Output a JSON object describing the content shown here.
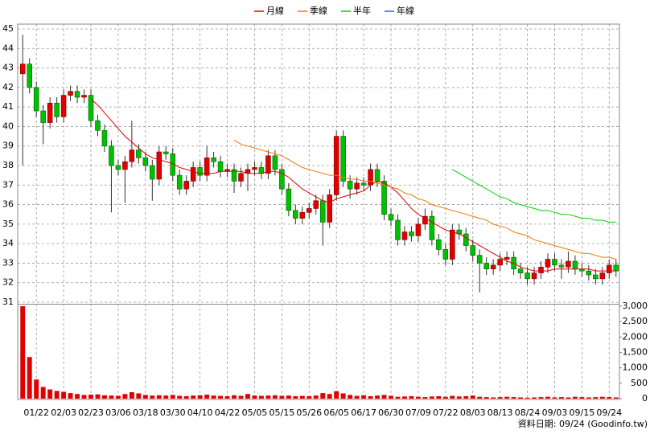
{
  "chart_data": [
    {
      "type": "candlestick",
      "legend": "top",
      "grid": true,
      "up_color": "#e00000",
      "down_color": "#00c000",
      "categories": [
        null,
        null,
        "01/22",
        null,
        null,
        null,
        "02/03",
        null,
        null,
        null,
        "02/23",
        null,
        null,
        null,
        "03/06",
        null,
        null,
        null,
        "03/18",
        null,
        null,
        null,
        "03/30",
        null,
        null,
        null,
        "04/10",
        null,
        null,
        null,
        "04/22",
        null,
        null,
        null,
        "05/05",
        null,
        null,
        null,
        "05/15",
        null,
        null,
        null,
        "05/26",
        null,
        null,
        null,
        "06/05",
        null,
        null,
        null,
        "06/17",
        null,
        null,
        null,
        "06/30",
        null,
        null,
        null,
        "07/09",
        null,
        null,
        null,
        "07/22",
        null,
        null,
        null,
        "08/03",
        null,
        null,
        null,
        "08/13",
        null,
        null,
        null,
        "08/24",
        null,
        null,
        null,
        "09/03",
        null,
        null,
        null,
        "09/15",
        null,
        null,
        null,
        "09/24",
        null
      ],
      "open": [
        42.7,
        43.2,
        42,
        40.8,
        40.2,
        41.2,
        40.5,
        41.6,
        41.8,
        41.5,
        41.6,
        40.3,
        39.8,
        39,
        38,
        37.8,
        38.2,
        38.8,
        38.4,
        38,
        37.3,
        38.7,
        38.6,
        37.5,
        36.8,
        37.2,
        37.9,
        37.5,
        38.4,
        38.2,
        37.7,
        37.8,
        37.2,
        37.6,
        37.8,
        37.9,
        37.6,
        38.5,
        37.8,
        36.8,
        35.7,
        35.3,
        35.6,
        35.8,
        36.2,
        35.1,
        36.5,
        39.5,
        37.2,
        36.8,
        37.1,
        37,
        37.8,
        37.2,
        35.5,
        35.2,
        34.2,
        34.6,
        34.4,
        35,
        35.4,
        34.2,
        33.7,
        33.2,
        34.7,
        34.5,
        33.9,
        33.4,
        33,
        32.7,
        32.9,
        33.2,
        33.3,
        32.7,
        32.5,
        32.2,
        32.5,
        32.8,
        33.2,
        32.9,
        32.8,
        33.1,
        32.7,
        32.6,
        32.4,
        32.2,
        32.5,
        32.9
      ],
      "high": [
        44.7,
        43.5,
        42.3,
        41.1,
        41.5,
        41.5,
        41.9,
        42.1,
        42.1,
        41.9,
        41.9,
        40.6,
        40.1,
        39.3,
        38.3,
        38.5,
        40.3,
        39.1,
        38.7,
        38.3,
        39,
        39,
        38.9,
        37.8,
        37.5,
        38.2,
        38.2,
        39,
        38.7,
        38.5,
        38.1,
        38.1,
        37.9,
        38.1,
        38.2,
        38.2,
        38.8,
        38.8,
        38.1,
        37.1,
        36,
        35.9,
        36.1,
        36.5,
        36.5,
        36.8,
        39.8,
        39.8,
        37.5,
        37.4,
        37.4,
        38.1,
        38.1,
        37.5,
        35.8,
        35.5,
        34.9,
        34.9,
        35.3,
        35.8,
        35.7,
        34.5,
        34,
        35,
        35,
        34.8,
        34.2,
        33.7,
        33.3,
        33.2,
        33.5,
        33.6,
        33.6,
        33,
        32.8,
        32.8,
        33.1,
        33.5,
        33.5,
        33.2,
        33.6,
        33.4,
        33,
        32.9,
        32.7,
        32.8,
        33.2,
        33.2
      ],
      "low": [
        38,
        41.7,
        40.5,
        39.1,
        39.9,
        40.2,
        40.2,
        41.3,
        41.2,
        41.2,
        40,
        39.5,
        38.7,
        35.6,
        37.5,
        36.1,
        37.9,
        38.1,
        37.7,
        36.2,
        37,
        38.3,
        37.2,
        36.5,
        36.5,
        36.9,
        37.2,
        37.2,
        37.9,
        37.4,
        37.4,
        36.6,
        36.9,
        36.7,
        37.5,
        37.3,
        37.3,
        37.5,
        36.5,
        35.4,
        35,
        35,
        35.3,
        35.5,
        33.9,
        34.8,
        36.2,
        36.9,
        36.3,
        36.5,
        36.7,
        36.7,
        36.9,
        35.2,
        34.9,
        33.9,
        33.9,
        34.1,
        34.1,
        34.7,
        33.9,
        33.4,
        32.9,
        32.9,
        34.2,
        33.6,
        33.1,
        31.5,
        32.4,
        32.4,
        32.6,
        32.9,
        32.4,
        32.2,
        31.9,
        31.9,
        32.2,
        32.5,
        32.6,
        32.2,
        32.5,
        32.4,
        32.3,
        32.1,
        31.9,
        31.9,
        32.2,
        32.3
      ],
      "close": [
        43.2,
        42,
        40.8,
        40.2,
        41.2,
        40.5,
        41.6,
        41.8,
        41.5,
        41.6,
        40.3,
        39.8,
        39,
        38,
        37.8,
        38.2,
        38.8,
        38.4,
        38,
        37.3,
        38.7,
        38.6,
        37.5,
        36.8,
        37.2,
        37.9,
        37.5,
        38.4,
        38.2,
        37.7,
        37.8,
        37.2,
        37.6,
        37.8,
        37.9,
        37.6,
        38.5,
        37.8,
        36.8,
        35.7,
        35.3,
        35.6,
        35.8,
        36.2,
        35.1,
        36.5,
        39.5,
        37.2,
        36.8,
        37.1,
        37,
        37.8,
        37.2,
        35.5,
        35.2,
        34.2,
        34.6,
        34.4,
        35,
        35.4,
        34.2,
        33.7,
        33.2,
        34.7,
        34.5,
        33.9,
        33.4,
        33,
        32.7,
        32.9,
        33.2,
        33.3,
        32.7,
        32.5,
        32.2,
        32.5,
        32.8,
        33.2,
        32.9,
        32.8,
        33.1,
        32.7,
        32.6,
        32.4,
        32.2,
        32.5,
        32.9,
        32.6
      ],
      "series": [
        {
          "name": "月線",
          "color": "#e00000",
          "values": [
            null,
            null,
            null,
            null,
            null,
            null,
            null,
            null,
            null,
            null,
            41.4,
            41.1,
            40.7,
            40.3,
            39.9,
            39.5,
            39.2,
            38.9,
            38.6,
            38.4,
            38.3,
            38.2,
            38.1,
            37.9,
            37.8,
            37.7,
            37.6,
            37.6,
            37.6,
            37.7,
            37.7,
            37.7,
            37.7,
            37.6,
            37.6,
            37.6,
            37.7,
            37.7,
            37.6,
            37.4,
            37.1,
            36.8,
            36.6,
            36.4,
            36.2,
            36.1,
            36.3,
            36.4,
            36.5,
            36.6,
            36.7,
            37.0,
            37.2,
            37.1,
            36.9,
            36.6,
            36.2,
            35.8,
            35.5,
            35.3,
            35.1,
            34.9,
            34.7,
            34.6,
            34.5,
            34.3,
            34.1,
            33.9,
            33.7,
            33.5,
            33.3,
            33.1,
            33.0,
            32.8,
            32.7,
            32.6,
            32.6,
            32.6,
            32.7,
            32.7,
            32.7,
            32.7,
            32.7,
            32.7,
            32.6,
            32.6,
            32.6,
            32.6
          ]
        },
        {
          "name": "季線",
          "color": "#f07800",
          "values": [
            null,
            null,
            null,
            null,
            null,
            null,
            null,
            null,
            null,
            null,
            null,
            null,
            null,
            null,
            null,
            null,
            null,
            null,
            null,
            null,
            null,
            null,
            null,
            null,
            null,
            null,
            null,
            null,
            null,
            null,
            null,
            39.3,
            39.1,
            39.0,
            38.9,
            38.8,
            38.7,
            38.6,
            38.5,
            38.3,
            38.1,
            37.9,
            37.8,
            37.7,
            37.6,
            37.5,
            37.5,
            37.4,
            37.3,
            37.3,
            37.2,
            37.2,
            37.1,
            37.0,
            36.9,
            36.8,
            36.6,
            36.5,
            36.3,
            36.2,
            36.0,
            35.9,
            35.8,
            35.7,
            35.6,
            35.5,
            35.4,
            35.3,
            35.2,
            35.0,
            34.9,
            34.8,
            34.6,
            34.5,
            34.4,
            34.2,
            34.1,
            34.0,
            33.9,
            33.8,
            33.7,
            33.6,
            33.5,
            33.5,
            33.4,
            33.3,
            33.3,
            33.2
          ]
        },
        {
          "name": "半年",
          "color": "#00d000",
          "values": [
            null,
            null,
            null,
            null,
            null,
            null,
            null,
            null,
            null,
            null,
            null,
            null,
            null,
            null,
            null,
            null,
            null,
            null,
            null,
            null,
            null,
            null,
            null,
            null,
            null,
            null,
            null,
            null,
            null,
            null,
            null,
            null,
            null,
            null,
            null,
            null,
            null,
            null,
            null,
            null,
            null,
            null,
            null,
            null,
            null,
            null,
            null,
            null,
            null,
            null,
            null,
            null,
            null,
            null,
            null,
            null,
            null,
            null,
            null,
            null,
            null,
            null,
            null,
            37.8,
            37.6,
            37.4,
            37.2,
            37.0,
            36.8,
            36.6,
            36.4,
            36.3,
            36.1,
            36.0,
            35.9,
            35.8,
            35.7,
            35.7,
            35.6,
            35.5,
            35.5,
            35.4,
            35.3,
            35.3,
            35.2,
            35.2,
            35.1,
            35.1
          ]
        },
        {
          "name": "年線",
          "color": "#1e6ee6",
          "values": [
            null,
            null,
            null,
            null,
            null,
            null,
            null,
            null,
            null,
            null,
            null,
            null,
            null,
            null,
            null,
            null,
            null,
            null,
            null,
            null,
            null,
            null,
            null,
            null,
            null,
            null,
            null,
            null,
            null,
            null,
            null,
            null,
            null,
            null,
            null,
            null,
            null,
            null,
            null,
            null,
            null,
            null,
            null,
            null,
            null,
            null,
            null,
            null,
            null,
            null,
            null,
            null,
            null,
            null,
            null,
            null,
            null,
            null,
            null,
            null,
            null,
            null,
            null,
            null,
            null,
            null,
            null,
            null,
            null,
            null,
            null,
            null,
            null,
            null,
            null,
            null,
            null,
            null,
            null,
            null,
            null,
            null,
            null,
            null,
            null,
            null,
            null,
            null
          ]
        }
      ],
      "ylim": [
        31,
        45
      ],
      "yticks": [
        31,
        32,
        33,
        34,
        35,
        36,
        37,
        38,
        39,
        40,
        41,
        42,
        43,
        44,
        45
      ]
    },
    {
      "type": "bar",
      "color": "#e00000",
      "values": [
        3000,
        1350,
        620,
        380,
        300,
        250,
        220,
        180,
        150,
        120,
        130,
        140,
        110,
        100,
        90,
        150,
        210,
        170,
        120,
        100,
        110,
        100,
        120,
        90,
        80,
        100,
        110,
        130,
        100,
        90,
        80,
        110,
        90,
        150,
        100,
        90,
        100,
        110,
        90,
        100,
        80,
        90,
        80,
        100,
        180,
        150,
        240,
        170,
        120,
        90,
        110,
        80,
        100,
        120,
        90,
        60,
        70,
        80,
        60,
        50,
        70,
        80,
        60,
        90,
        70,
        80,
        100,
        60,
        50,
        40,
        50,
        60,
        50,
        40,
        30,
        40,
        50,
        60,
        40,
        50,
        40,
        60,
        50,
        40,
        50,
        60,
        50,
        40
      ],
      "ylim": [
        0,
        3000
      ],
      "yticks": [
        0,
        500,
        {
          "value": 1000,
          "label": "1,000"
        },
        {
          "value": 1500,
          "label": "1,500"
        },
        {
          "value": 2000,
          "label": "2,000"
        },
        {
          "value": 2500,
          "label": "2,500"
        },
        {
          "value": 3000,
          "label": "3,000"
        }
      ],
      "footnote": "資料日期: 09/24 (Goodinfo.tw)"
    }
  ]
}
